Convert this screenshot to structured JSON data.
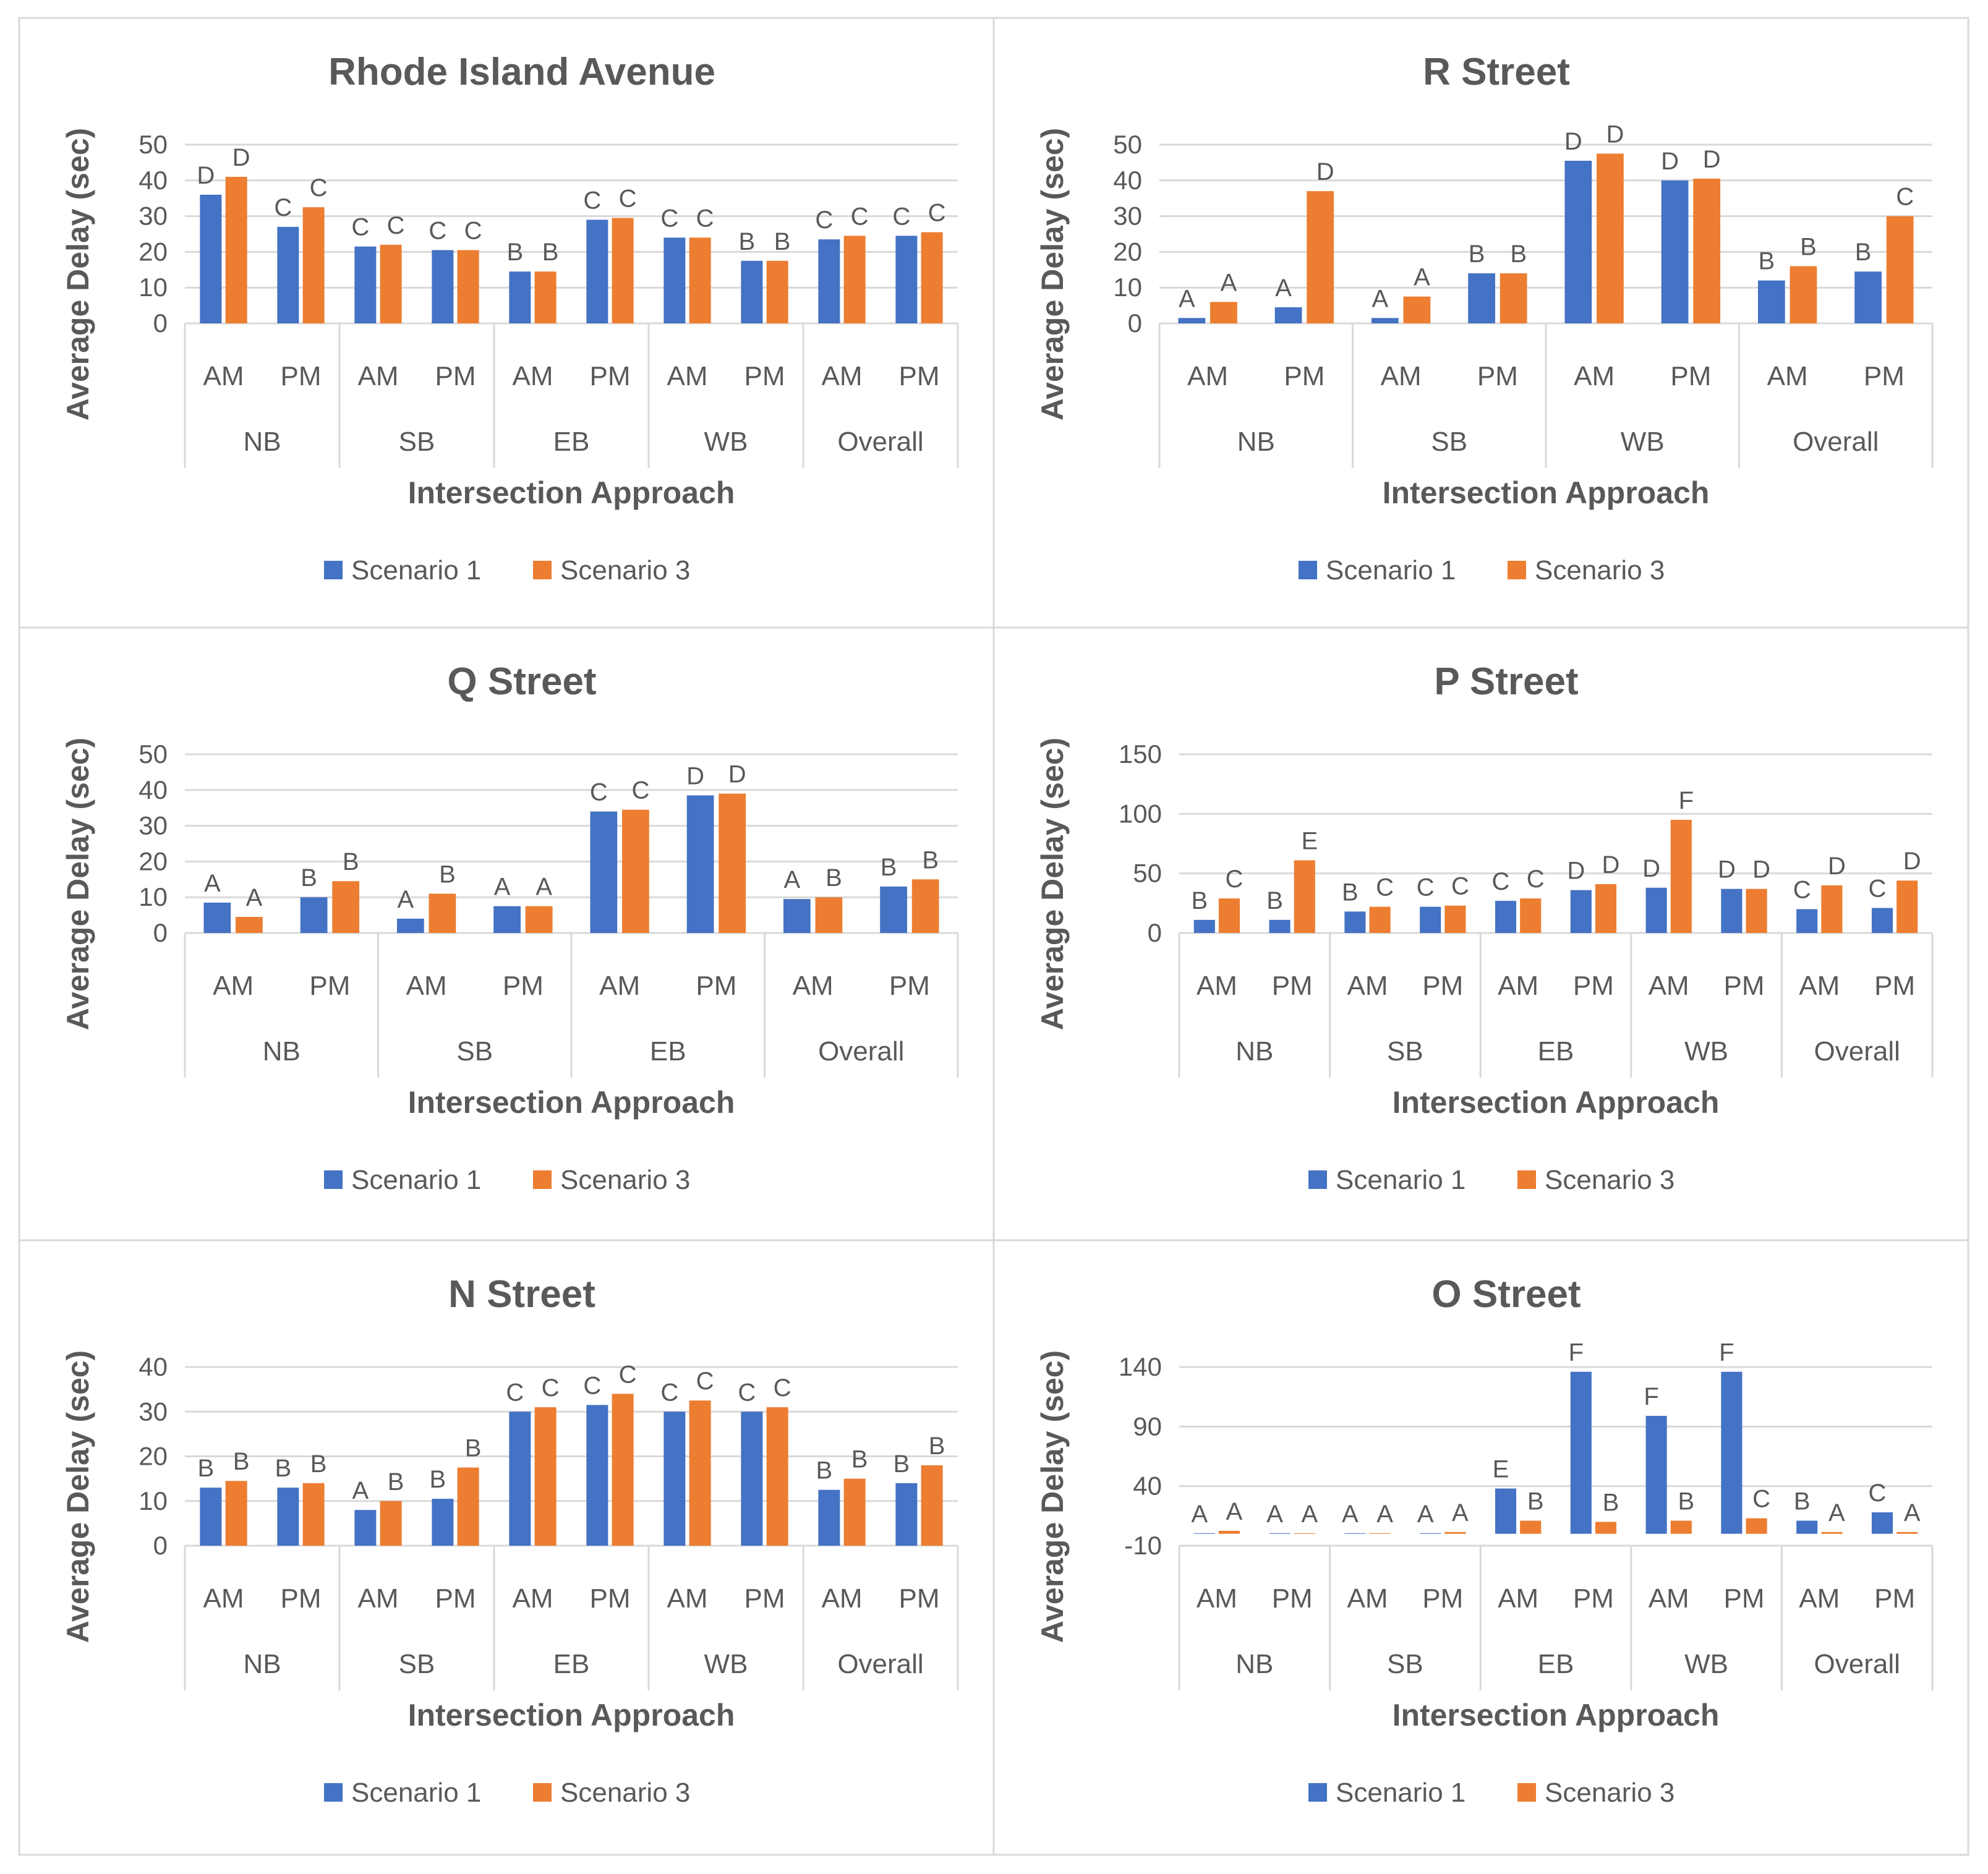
{
  "colors": {
    "series1": "#4472C4",
    "series2": "#ED7D31",
    "grid": "#D9D9D9",
    "text": "#595959",
    "frame": "#D9D9D9"
  },
  "chart_data": [
    {
      "type": "bar",
      "title": "Rhode Island Avenue",
      "ylabel": "Average Delay (sec)",
      "xlabel": "Intersection Approach",
      "ylim": [
        0,
        50
      ],
      "yticks": [
        0,
        10,
        20,
        30,
        40,
        50
      ],
      "groups": [
        "NB",
        "SB",
        "EB",
        "WB",
        "Overall"
      ],
      "categories": [
        "AM",
        "PM",
        "AM",
        "PM",
        "AM",
        "PM",
        "AM",
        "PM",
        "AM",
        "PM"
      ],
      "legend": [
        "Scenario 1",
        "Scenario 3"
      ],
      "series": [
        {
          "name": "Scenario 1",
          "values": [
            36,
            27,
            21.5,
            20.5,
            14.5,
            29,
            24,
            17.5,
            23.5,
            24.5
          ],
          "labels": [
            "D",
            "C",
            "C",
            "C",
            "B",
            "C",
            "C",
            "B",
            "C",
            "C"
          ]
        },
        {
          "name": "Scenario 3",
          "values": [
            41,
            32.5,
            22,
            20.5,
            14.5,
            29.5,
            24,
            17.5,
            24.5,
            25.5
          ],
          "labels": [
            "D",
            "C",
            "C",
            "C",
            "B",
            "C",
            "C",
            "B",
            "C",
            "C"
          ]
        }
      ]
    },
    {
      "type": "bar",
      "title": "R Street",
      "ylabel": "Average Delay (sec)",
      "xlabel": "Intersection Approach",
      "ylim": [
        0,
        50
      ],
      "yticks": [
        0,
        10,
        20,
        30,
        40,
        50
      ],
      "groups": [
        "NB",
        "SB",
        "WB",
        "Overall"
      ],
      "categories": [
        "AM",
        "PM",
        "AM",
        "PM",
        "AM",
        "PM",
        "AM",
        "PM"
      ],
      "legend": [
        "Scenario 1",
        "Scenario 3"
      ],
      "series": [
        {
          "name": "Scenario 1",
          "values": [
            1.5,
            4.5,
            1.5,
            14,
            45.5,
            40,
            12,
            14.5
          ],
          "labels": [
            "A",
            "A",
            "A",
            "B",
            "D",
            "D",
            "B",
            "B"
          ]
        },
        {
          "name": "Scenario 3",
          "values": [
            6,
            37,
            7.5,
            14,
            47.5,
            40.5,
            16,
            30
          ],
          "labels": [
            "A",
            "D",
            "A",
            "B",
            "D",
            "D",
            "B",
            "C"
          ]
        }
      ]
    },
    {
      "type": "bar",
      "title": "Q Street",
      "ylabel": "Average Delay (sec)",
      "xlabel": "Intersection Approach",
      "ylim": [
        0,
        50
      ],
      "yticks": [
        0,
        10,
        20,
        30,
        40,
        50
      ],
      "groups": [
        "NB",
        "SB",
        "EB",
        "Overall"
      ],
      "categories": [
        "AM",
        "PM",
        "AM",
        "PM",
        "AM",
        "PM",
        "AM",
        "PM"
      ],
      "legend": [
        "Scenario 1",
        "Scenario 3"
      ],
      "series": [
        {
          "name": "Scenario 1",
          "values": [
            8.5,
            10,
            4,
            7.5,
            34,
            38.5,
            9.5,
            13
          ],
          "labels": [
            "A",
            "B",
            "A",
            "A",
            "C",
            "D",
            "A",
            "B"
          ]
        },
        {
          "name": "Scenario 3",
          "values": [
            4.5,
            14.5,
            11,
            7.5,
            34.5,
            39,
            10,
            15
          ],
          "labels": [
            "A",
            "B",
            "B",
            "A",
            "C",
            "D",
            "B",
            "B"
          ]
        }
      ]
    },
    {
      "type": "bar",
      "title": "P Street",
      "ylabel": "Average Delay (sec)",
      "xlabel": "Intersection Approach",
      "ylim": [
        0,
        150
      ],
      "yticks": [
        0,
        50,
        100,
        150
      ],
      "groups": [
        "NB",
        "SB",
        "EB",
        "WB",
        "Overall"
      ],
      "categories": [
        "AM",
        "PM",
        "AM",
        "PM",
        "AM",
        "PM",
        "AM",
        "PM",
        "AM",
        "PM"
      ],
      "legend": [
        "Scenario 1",
        "Scenario 3"
      ],
      "series": [
        {
          "name": "Scenario 1",
          "values": [
            11,
            11,
            18,
            22,
            27,
            36,
            38,
            37,
            20,
            21
          ],
          "labels": [
            "B",
            "B",
            "B",
            "C",
            "C",
            "D",
            "D",
            "D",
            "C",
            "C"
          ]
        },
        {
          "name": "Scenario 3",
          "values": [
            29,
            61,
            22,
            23,
            29,
            41,
            95,
            37,
            40,
            44
          ],
          "labels": [
            "C",
            "E",
            "C",
            "C",
            "C",
            "D",
            "F",
            "D",
            "D",
            "D"
          ]
        }
      ]
    },
    {
      "type": "bar",
      "title": "N Street",
      "ylabel": "Average Delay (sec)",
      "xlabel": "Intersection Approach",
      "ylim": [
        0,
        40
      ],
      "yticks": [
        0,
        10,
        20,
        30,
        40
      ],
      "groups": [
        "NB",
        "SB",
        "EB",
        "WB",
        "Overall"
      ],
      "categories": [
        "AM",
        "PM",
        "AM",
        "PM",
        "AM",
        "PM",
        "AM",
        "PM",
        "AM",
        "PM"
      ],
      "legend": [
        "Scenario 1",
        "Scenario 3"
      ],
      "series": [
        {
          "name": "Scenario 1",
          "values": [
            13,
            13,
            8,
            10.5,
            30,
            31.5,
            30,
            30,
            12.5,
            14
          ],
          "labels": [
            "B",
            "B",
            "A",
            "B",
            "C",
            "C",
            "C",
            "C",
            "B",
            "B"
          ]
        },
        {
          "name": "Scenario 3",
          "values": [
            14.5,
            14,
            10,
            17.5,
            31,
            34,
            32.5,
            31,
            15,
            18
          ],
          "labels": [
            "B",
            "B",
            "B",
            "B",
            "C",
            "C",
            "C",
            "C",
            "B",
            "B"
          ]
        }
      ]
    },
    {
      "type": "bar",
      "title": "O Street",
      "ylabel": "Average Delay (sec)",
      "xlabel": "Intersection Approach",
      "ylim": [
        -10,
        140
      ],
      "yticks": [
        -10,
        40,
        90,
        140
      ],
      "groups": [
        "NB",
        "SB",
        "EB",
        "WB",
        "Overall"
      ],
      "categories": [
        "AM",
        "PM",
        "AM",
        "PM",
        "AM",
        "PM",
        "AM",
        "PM",
        "AM",
        "PM"
      ],
      "legend": [
        "Scenario 1",
        "Scenario 3"
      ],
      "series": [
        {
          "name": "Scenario 1",
          "values": [
            0.5,
            0.5,
            0.5,
            0.5,
            38,
            136,
            99,
            136,
            11,
            18
          ],
          "labels": [
            "A",
            "A",
            "A",
            "A",
            "E",
            "F",
            "F",
            "F",
            "B",
            "C"
          ]
        },
        {
          "name": "Scenario 3",
          "values": [
            2.5,
            0.5,
            0.5,
            1.5,
            11,
            10,
            11,
            13,
            1.5,
            1.5
          ],
          "labels": [
            "A",
            "A",
            "A",
            "A",
            "B",
            "B",
            "B",
            "C",
            "A",
            "A"
          ]
        }
      ]
    }
  ]
}
